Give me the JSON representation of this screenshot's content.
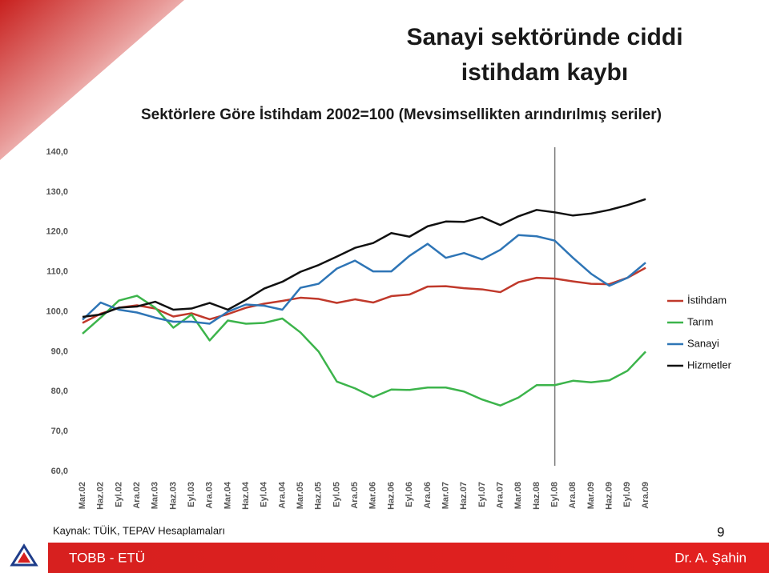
{
  "slide": {
    "title_lines": [
      "Sanayi sektöründe ciddi",
      "istihdam kaybı"
    ],
    "source": "Kaynak: TÜİK, TEPAV Hesaplamaları",
    "page_number": "9",
    "footer_left": "TOBB - ETÜ",
    "footer_right": "Dr. A. Şahin"
  },
  "chart_data": {
    "type": "line",
    "title": "Sektörlere Göre İstihdam 2002=100 (Mevsimsellikten arındırılmış seriler)",
    "categories": [
      "Mar.02",
      "Haz.02",
      "Eyl.02",
      "Ara.02",
      "Mar.03",
      "Haz.03",
      "Eyl.03",
      "Ara.03",
      "Mar.04",
      "Haz.04",
      "Eyl.04",
      "Ara.04",
      "Mar.05",
      "Haz.05",
      "Eyl.05",
      "Ara.05",
      "Mar.06",
      "Haz.06",
      "Eyl.06",
      "Ara.06",
      "Mar.07",
      "Haz.07",
      "Eyl.07",
      "Ara.07",
      "Mar.08",
      "Haz.08",
      "Eyl.08",
      "Ara.08",
      "Mar.09",
      "Haz.09",
      "Eyl.09",
      "Ara.09"
    ],
    "series": [
      {
        "name": "İstihdam",
        "color": "#c0392b",
        "values": [
          97.2,
          99.5,
          101,
          101.6,
          100.8,
          98.8,
          99.6,
          98.1,
          99.4,
          101,
          102,
          102.7,
          103.5,
          103.2,
          102.2,
          103.1,
          102.3,
          103.9,
          104.3,
          106.3,
          106.4,
          105.9,
          105.6,
          104.9,
          107.4,
          108.5,
          108.3,
          107.6,
          107,
          106.9,
          108.5,
          111
        ]
      },
      {
        "name": "Tarım",
        "color": "#3cb44b",
        "values": [
          94.5,
          98.5,
          102.8,
          104,
          101,
          96,
          99.3,
          92.8,
          97.8,
          97,
          97.2,
          98.3,
          94.8,
          90,
          82.5,
          80.8,
          78.6,
          80.5,
          80.4,
          81,
          81,
          80,
          78,
          76.5,
          78.5,
          81.6,
          81.6,
          82.7,
          82.3,
          82.8,
          85.2,
          90
        ]
      },
      {
        "name": "Sanayi",
        "color": "#2e75b6",
        "values": [
          98,
          102.3,
          100.5,
          99.8,
          98.5,
          97.5,
          97.5,
          97,
          100,
          101.8,
          101.5,
          100.5,
          106,
          107,
          110.8,
          112.8,
          110.1,
          110.1,
          114,
          117,
          113.5,
          114.7,
          113.1,
          115.5,
          119.2,
          118.9,
          117.8,
          113.5,
          109.5,
          106.5,
          108.5,
          112.3
        ]
      },
      {
        "name": "Hizmetler",
        "color": "#111111",
        "values": [
          98.7,
          99.3,
          101,
          101.3,
          102.5,
          100.5,
          100.8,
          102.2,
          100.5,
          103,
          105.8,
          107.5,
          110,
          111.7,
          113.8,
          116,
          117.2,
          119.7,
          118.8,
          121.4,
          122.6,
          122.5,
          123.7,
          121.7,
          123.9,
          125.5,
          124.9,
          124.1,
          124.6,
          125.5,
          126.7,
          128.2
        ]
      }
    ],
    "ylim": [
      60,
      140
    ],
    "yticks": [
      {
        "value": 60,
        "label": "60,0"
      },
      {
        "value": 70,
        "label": "70,0"
      },
      {
        "value": 80,
        "label": "80,0"
      },
      {
        "value": 90,
        "label": "90,0"
      },
      {
        "value": 100,
        "label": "100,0"
      },
      {
        "value": 110,
        "label": "110,0"
      },
      {
        "value": 120,
        "label": "120,0"
      },
      {
        "value": 130,
        "label": "130,0"
      },
      {
        "value": 140,
        "label": "140,0"
      }
    ],
    "vertical_line_at": "Eyl.08",
    "grid": false,
    "legend": "right"
  }
}
